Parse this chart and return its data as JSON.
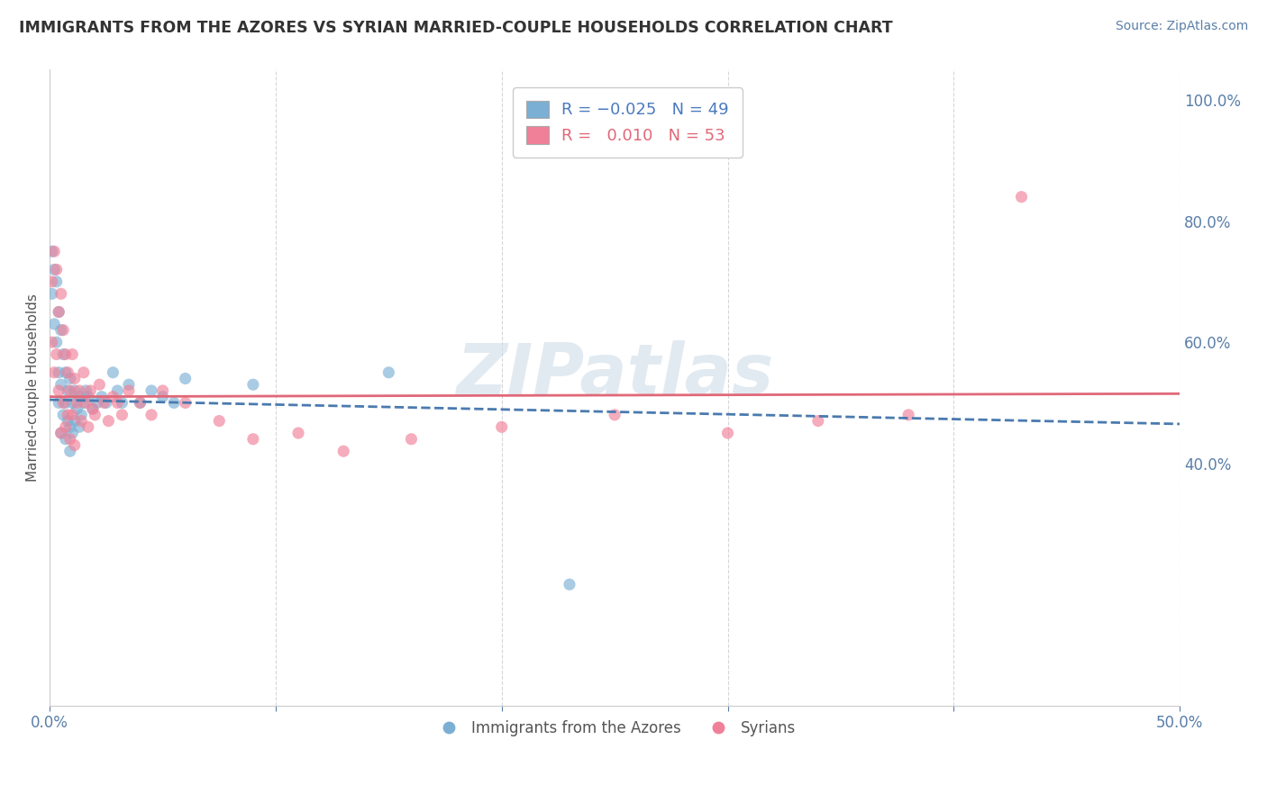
{
  "title": "IMMIGRANTS FROM THE AZORES VS SYRIAN MARRIED-COUPLE HOUSEHOLDS CORRELATION CHART",
  "source_text": "Source: ZipAtlas.com",
  "ylabel": "Married-couple Households",
  "xlim": [
    0.0,
    0.5
  ],
  "ylim": [
    0.0,
    1.05
  ],
  "xticks": [
    0.0,
    0.1,
    0.2,
    0.3,
    0.4,
    0.5
  ],
  "xticklabels": [
    "0.0%",
    "",
    "",
    "",
    "",
    "50.0%"
  ],
  "yticks_right": [
    0.4,
    0.6,
    0.8,
    1.0
  ],
  "yticklabels_right": [
    "40.0%",
    "60.0%",
    "80.0%",
    "100.0%"
  ],
  "watermark": "ZIPatlas",
  "blue_color": "#7bafd4",
  "pink_color": "#f08098",
  "blue_line_color": "#4a7aaf",
  "pink_line_color": "#e06878",
  "grid_color": "#cccccc",
  "background_color": "#ffffff",
  "azores_x": [
    0.001,
    0.001,
    0.002,
    0.002,
    0.003,
    0.003,
    0.004,
    0.004,
    0.004,
    0.005,
    0.005,
    0.005,
    0.006,
    0.006,
    0.007,
    0.007,
    0.007,
    0.008,
    0.008,
    0.009,
    0.009,
    0.009,
    0.01,
    0.01,
    0.011,
    0.011,
    0.012,
    0.013,
    0.013,
    0.014,
    0.015,
    0.016,
    0.017,
    0.019,
    0.021,
    0.023,
    0.025,
    0.028,
    0.03,
    0.032,
    0.035,
    0.04,
    0.045,
    0.05,
    0.055,
    0.06,
    0.09,
    0.15,
    0.23
  ],
  "azores_y": [
    0.75,
    0.68,
    0.72,
    0.63,
    0.7,
    0.6,
    0.65,
    0.55,
    0.5,
    0.62,
    0.53,
    0.45,
    0.58,
    0.48,
    0.55,
    0.5,
    0.44,
    0.52,
    0.47,
    0.54,
    0.46,
    0.42,
    0.5,
    0.45,
    0.52,
    0.47,
    0.49,
    0.51,
    0.46,
    0.48,
    0.5,
    0.52,
    0.51,
    0.49,
    0.5,
    0.51,
    0.5,
    0.55,
    0.52,
    0.5,
    0.53,
    0.5,
    0.52,
    0.51,
    0.5,
    0.54,
    0.53,
    0.55,
    0.2
  ],
  "syrian_x": [
    0.001,
    0.001,
    0.002,
    0.002,
    0.003,
    0.003,
    0.004,
    0.004,
    0.005,
    0.005,
    0.006,
    0.006,
    0.007,
    0.007,
    0.008,
    0.008,
    0.009,
    0.009,
    0.01,
    0.01,
    0.011,
    0.011,
    0.012,
    0.013,
    0.014,
    0.015,
    0.016,
    0.017,
    0.018,
    0.019,
    0.02,
    0.022,
    0.024,
    0.026,
    0.028,
    0.03,
    0.032,
    0.035,
    0.04,
    0.045,
    0.05,
    0.06,
    0.075,
    0.09,
    0.11,
    0.13,
    0.16,
    0.2,
    0.25,
    0.3,
    0.34,
    0.38,
    0.43
  ],
  "syrian_y": [
    0.7,
    0.6,
    0.75,
    0.55,
    0.72,
    0.58,
    0.65,
    0.52,
    0.68,
    0.45,
    0.62,
    0.5,
    0.58,
    0.46,
    0.55,
    0.48,
    0.52,
    0.44,
    0.58,
    0.48,
    0.54,
    0.43,
    0.5,
    0.52,
    0.47,
    0.55,
    0.5,
    0.46,
    0.52,
    0.49,
    0.48,
    0.53,
    0.5,
    0.47,
    0.51,
    0.5,
    0.48,
    0.52,
    0.5,
    0.48,
    0.52,
    0.5,
    0.47,
    0.44,
    0.45,
    0.42,
    0.44,
    0.46,
    0.48,
    0.45,
    0.47,
    0.48,
    0.84
  ],
  "blue_trendline_x": [
    0.0,
    0.5
  ],
  "blue_trendline_y": [
    0.505,
    0.465
  ],
  "pink_trendline_x": [
    0.0,
    0.5
  ],
  "pink_trendline_y": [
    0.51,
    0.515
  ]
}
